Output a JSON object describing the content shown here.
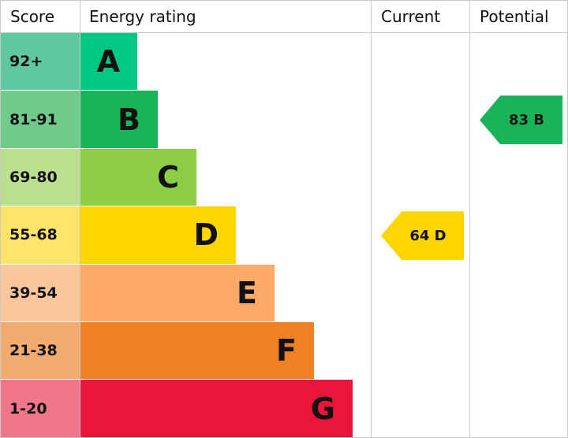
{
  "header": {
    "score": "Score",
    "rating": "Energy rating",
    "current": "Current",
    "potential": "Potential"
  },
  "bands": [
    {
      "score": "92+",
      "letter": "A",
      "color": "#00c781",
      "score_color": "#5fc8a0"
    },
    {
      "score": "81-91",
      "letter": "B",
      "color": "#19b459",
      "score_color": "#6fcb8a"
    },
    {
      "score": "69-80",
      "letter": "C",
      "color": "#8dce46",
      "score_color": "#badf8f"
    },
    {
      "score": "55-68",
      "letter": "D",
      "color": "#ffd500",
      "score_color": "#ffe46a"
    },
    {
      "score": "39-54",
      "letter": "E",
      "color": "#fcaa65",
      "score_color": "#fdc59a"
    },
    {
      "score": "21-38",
      "letter": "F",
      "color": "#ef8023",
      "score_color": "#f4ab70"
    },
    {
      "score": "1-20",
      "letter": "G",
      "color": "#e9153b",
      "score_color": "#f07789"
    }
  ],
  "current": {
    "label": "64 D",
    "color": "#ffd500"
  },
  "potential": {
    "label": "83 B",
    "color": "#19b459"
  }
}
